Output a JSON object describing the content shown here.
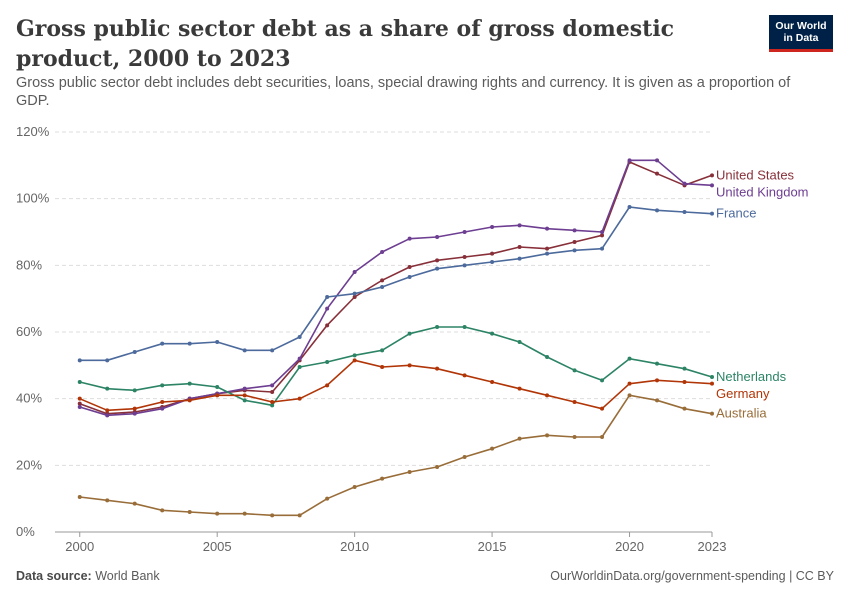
{
  "header": {
    "title": "Gross public sector debt as a share of gross domestic product, 2000 to 2023",
    "subtitle": "Gross public sector debt includes debt securities, loans, special drawing rights and currency. It is given as a proportion of GDP.",
    "logo_line1": "Our World",
    "logo_line2": "in Data"
  },
  "footer": {
    "source_label": "Data source:",
    "source_value": "World Bank",
    "url_license": "OurWorldinData.org/government-spending | CC BY"
  },
  "colors": {
    "background": "#ffffff",
    "grid": "#dddddd",
    "tick_text": "#666666",
    "logo_bg": "#002147",
    "logo_accent": "#ce261e"
  },
  "chart_data": {
    "type": "line",
    "x": [
      2000,
      2001,
      2002,
      2003,
      2004,
      2005,
      2006,
      2007,
      2008,
      2009,
      2010,
      2011,
      2012,
      2013,
      2014,
      2015,
      2016,
      2017,
      2018,
      2019,
      2020,
      2021,
      2022,
      2023
    ],
    "xlim": [
      1999.1,
      2023
    ],
    "ylim": [
      0,
      120
    ],
    "y_ticks": [
      0,
      20,
      40,
      60,
      80,
      100,
      120
    ],
    "y_tick_labels": [
      "0%",
      "20%",
      "40%",
      "60%",
      "80%",
      "100%",
      "120%"
    ],
    "x_ticks": [
      2000,
      2005,
      2010,
      2015,
      2020,
      2023
    ],
    "x_tick_labels": [
      "2000",
      "2005",
      "2010",
      "2015",
      "2020",
      "2023"
    ],
    "grid": true,
    "legend_placement": "right end labels",
    "series": [
      {
        "name": "United States",
        "color": "#883039",
        "values": [
          38.5,
          35.5,
          36.0,
          37.5,
          40.0,
          41.5,
          42.5,
          42.0,
          51.5,
          62.0,
          70.5,
          75.5,
          79.5,
          81.5,
          82.5,
          83.5,
          85.5,
          85.0,
          87.0,
          89.0,
          111.0,
          107.5,
          104.0,
          107.0
        ]
      },
      {
        "name": "United Kingdom",
        "color": "#6d3e91",
        "values": [
          37.5,
          35.0,
          35.5,
          37.0,
          40.0,
          41.5,
          43.0,
          44.0,
          52.0,
          67.0,
          78.0,
          84.0,
          88.0,
          88.5,
          90.0,
          91.5,
          92.0,
          91.0,
          90.5,
          90.0,
          111.5,
          111.5,
          104.5,
          104.0
        ]
      },
      {
        "name": "France",
        "color": "#4c6a9c",
        "values": [
          51.5,
          51.5,
          54.0,
          56.5,
          56.5,
          57.0,
          54.5,
          54.5,
          58.5,
          70.5,
          71.5,
          73.5,
          76.5,
          79.0,
          80.0,
          81.0,
          82.0,
          83.5,
          84.5,
          85.0,
          97.5,
          96.5,
          96.0,
          95.5
        ]
      },
      {
        "name": "Netherlands",
        "color": "#2c8465",
        "values": [
          45.0,
          43.0,
          42.5,
          44.0,
          44.5,
          43.5,
          39.5,
          38.0,
          49.5,
          51.0,
          53.0,
          54.5,
          59.5,
          61.5,
          61.5,
          59.5,
          57.0,
          52.5,
          48.5,
          45.5,
          52.0,
          50.5,
          49.0,
          46.5
        ]
      },
      {
        "name": "Germany",
        "color": "#b13507",
        "values": [
          40.0,
          36.5,
          37.0,
          39.0,
          39.5,
          41.0,
          41.0,
          39.0,
          40.0,
          44.0,
          51.5,
          49.5,
          50.0,
          49.0,
          47.0,
          45.0,
          43.0,
          41.0,
          39.0,
          37.0,
          44.5,
          45.5,
          45.0,
          44.5
        ]
      },
      {
        "name": "Australia",
        "color": "#996d39",
        "values": [
          10.5,
          9.5,
          8.5,
          6.5,
          6.0,
          5.5,
          5.5,
          5.0,
          5.0,
          10.0,
          13.5,
          16.0,
          18.0,
          19.5,
          22.5,
          25.0,
          28.0,
          29.0,
          28.5,
          28.5,
          41.0,
          39.5,
          37.0,
          35.5
        ]
      }
    ]
  }
}
